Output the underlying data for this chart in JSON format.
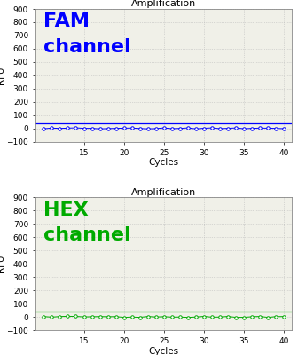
{
  "title": "Amplification",
  "xlabel": "Cycles",
  "ylabel": "RFU",
  "ylim": [
    -100,
    900
  ],
  "xlim": [
    9,
    41
  ],
  "xticks": [
    15,
    20,
    25,
    30,
    35,
    40
  ],
  "yticks": [
    -100,
    0,
    100,
    200,
    300,
    400,
    500,
    600,
    700,
    800,
    900
  ],
  "cycles_start": 10,
  "cycles_end": 40,
  "fam_color": "#0000FF",
  "hex_color": "#00AA00",
  "fam_label_line1": "FAM",
  "fam_label_line2": "channel",
  "hex_label_line1": "HEX",
  "hex_label_line2": "channel",
  "fam_threshold": 38,
  "hex_threshold": 38,
  "bg_color": "#f0f0e8",
  "grid_color": "#bbbbbb",
  "label_fontsize": 16,
  "title_fontsize": 8,
  "axis_label_fontsize": 7.5,
  "tick_fontsize": 6.5,
  "data_noise_scale": 4
}
